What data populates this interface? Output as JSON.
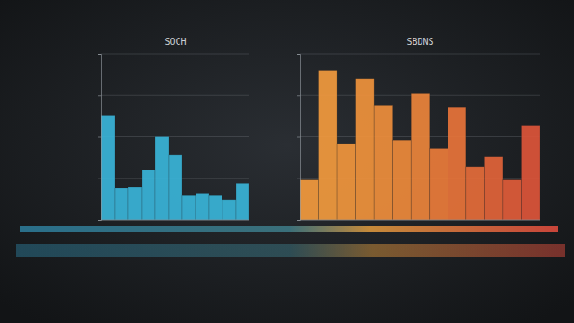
{
  "chart_data": [
    {
      "type": "bar",
      "title": "SOCH",
      "values": [
        63,
        19,
        20,
        30,
        50,
        39,
        15,
        16,
        15,
        12,
        22
      ],
      "color": "#3ab4d8",
      "ylim": [
        0,
        100
      ],
      "yticks": [
        0,
        25,
        50,
        75,
        100
      ],
      "grid": true,
      "tick_labels": false
    },
    {
      "type": "bar",
      "title": "SBDNS",
      "values": [
        24,
        90,
        46,
        85,
        69,
        48,
        76,
        43,
        68,
        32,
        38,
        24,
        57
      ],
      "colors": [
        "#f39a3e",
        "#f29a3e",
        "#f1963d",
        "#f0923c",
        "#ef8e3c",
        "#ee8a3b",
        "#ec843b",
        "#ea7c3a",
        "#e8743a",
        "#e56c3a",
        "#e2643a",
        "#df5c3a",
        "#dc553a"
      ],
      "ylim": [
        0,
        100
      ],
      "yticks": [
        0,
        25,
        50,
        75,
        100
      ],
      "grid": true,
      "tick_labels": false
    }
  ]
}
